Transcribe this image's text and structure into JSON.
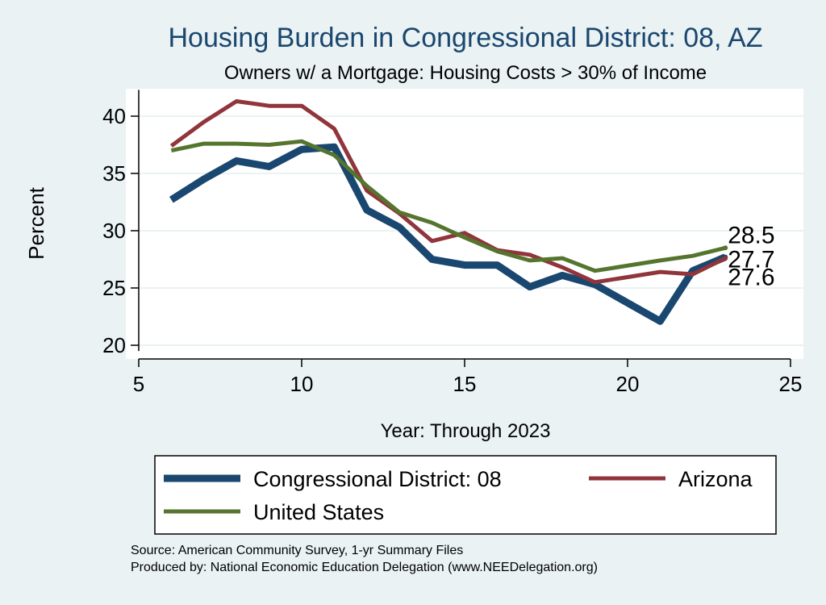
{
  "chart_data": {
    "type": "line",
    "title": "Housing Burden in Congressional District:  08, AZ",
    "subtitle": "Owners w/ a Mortgage: Housing Costs > 30% of Income",
    "xlabel": "Year: Through 2023",
    "ylabel": "Percent",
    "xlim": [
      5,
      25
    ],
    "ylim": [
      19.5,
      42.3
    ],
    "xticks": [
      5,
      10,
      15,
      20,
      25
    ],
    "yticks": [
      20,
      25,
      30,
      35,
      40
    ],
    "grid": true,
    "legend_position": "bottom",
    "series": [
      {
        "name": "Congressional District:  08",
        "color": "#1a476f",
        "x": [
          6,
          7,
          8,
          9,
          10,
          11,
          12,
          13,
          14,
          15,
          16,
          17,
          18,
          19,
          21,
          22,
          23
        ],
        "y": [
          32.7,
          34.5,
          36.1,
          35.6,
          37.1,
          37.3,
          31.8,
          30.3,
          27.5,
          27.0,
          27.0,
          25.1,
          26.1,
          25.3,
          22.1,
          26.5,
          27.7
        ],
        "end_label": "27.7"
      },
      {
        "name": "Arizona",
        "color": "#90353b",
        "x": [
          6,
          7,
          8,
          9,
          10,
          11,
          12,
          13,
          14,
          15,
          16,
          17,
          18,
          19,
          21,
          22,
          23
        ],
        "y": [
          37.4,
          39.5,
          41.3,
          40.9,
          40.9,
          38.9,
          33.5,
          31.5,
          29.1,
          29.8,
          28.3,
          27.9,
          26.8,
          25.5,
          26.4,
          26.2,
          27.6
        ],
        "end_label": "27.6"
      },
      {
        "name": "United States",
        "color": "#55752f",
        "x": [
          6,
          7,
          8,
          9,
          10,
          11,
          12,
          13,
          14,
          15,
          16,
          17,
          18,
          19,
          21,
          22,
          23
        ],
        "y": [
          37.0,
          37.6,
          37.6,
          37.5,
          37.8,
          36.6,
          33.9,
          31.6,
          30.7,
          29.4,
          28.2,
          27.4,
          27.6,
          26.5,
          27.4,
          27.8,
          28.5
        ],
        "end_label": "28.5"
      }
    ],
    "source_lines": [
      "Source: American Community Survey, 1-yr Summary Files",
      "Produced by: National Economic Education Delegation (www.NEEDelegation.org)"
    ]
  }
}
